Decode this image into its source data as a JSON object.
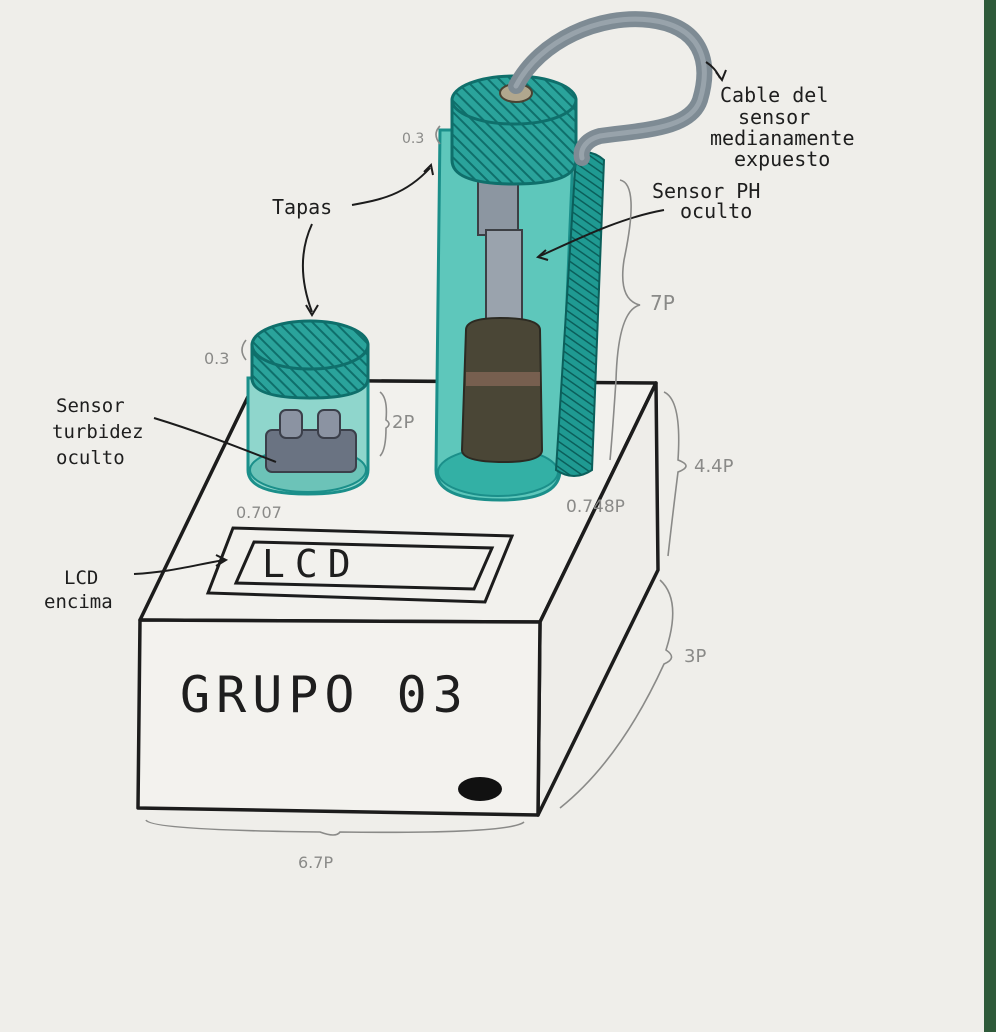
{
  "labels": {
    "cable_line1": "Cable del",
    "cable_line2": "sensor",
    "cable_line3": "medianamente",
    "cable_line4": "expuesto",
    "ph_line1": "Sensor PH",
    "ph_line2": "oculto",
    "tapas": "Tapas",
    "turb_line1": "Sensor",
    "turb_line2": "turbidez",
    "turb_line3": "oculto",
    "lcd_side_line1": "LCD",
    "lcd_side_line2": "encima",
    "lcd_screen": "LCD",
    "group": "GRUPO 03"
  },
  "dimensions": {
    "cap_small": "0.3",
    "cap_tall": "0.3",
    "small_height": "2P",
    "small_diameter": "0.707",
    "tall_height": "7P",
    "tall_diameter": "0.748P",
    "box_depth": "4.4P",
    "box_height": "3P",
    "box_width": "6.7P"
  },
  "colors": {
    "teal": "#1b8f8a",
    "teal_light": "#7fd0c6",
    "paper": "#efeeea",
    "ink": "#1c1c1c",
    "cable": "#7e8b94",
    "sensor_dark": "#4a4636"
  }
}
